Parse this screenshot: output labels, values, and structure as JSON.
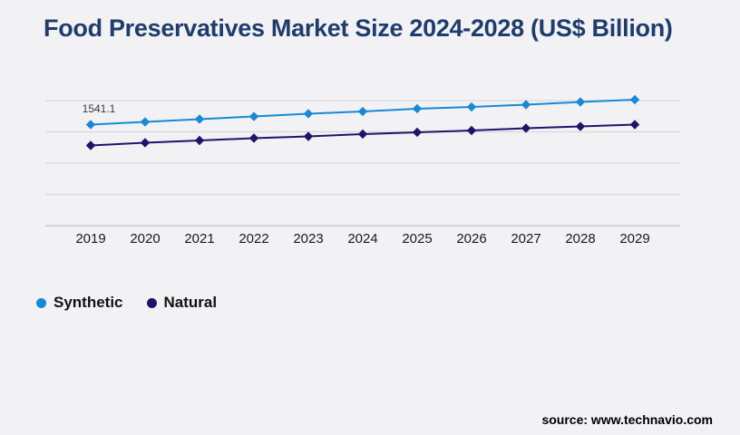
{
  "title": "Food Preservatives Market Size 2024-2028 (US$ Billion)",
  "source": "source: www.technavio.com",
  "colors": {
    "background": "#f2f2f4",
    "title": "#1e3c6d",
    "gridline": "#d8d8da",
    "axis_line": "#c6c6c8",
    "synthetic": "#1789d6",
    "natural": "#1c156b"
  },
  "chart_data": {
    "type": "line",
    "title": "Food Preservatives Market Size 2024-2028 (US$ Billion)",
    "categories": [
      "2019",
      "2020",
      "2021",
      "2022",
      "2023",
      "2024",
      "2025",
      "2026",
      "2027",
      "2028",
      "2029"
    ],
    "series": [
      {
        "name": "Synthetic",
        "color": "#1789d6",
        "values": [
          1541.1,
          1582,
          1624,
          1665,
          1707,
          1741,
          1783,
          1810,
          1845,
          1886,
          1921
        ]
      },
      {
        "name": "Natural",
        "color": "#1c156b",
        "values": [
          1223,
          1265,
          1299,
          1334,
          1361,
          1396,
          1424,
          1451,
          1486,
          1513,
          1541
        ]
      }
    ],
    "xlabel": "",
    "ylabel": "",
    "ylim": [
      0,
      2150
    ],
    "y_axis_labels_visible": false,
    "gridlines": 5,
    "grid_on": true,
    "marker": "diamond",
    "legend_position": "bottom-left",
    "data_labels": [
      {
        "series": "Synthetic",
        "category": "2019",
        "text": "1541.1"
      }
    ]
  }
}
